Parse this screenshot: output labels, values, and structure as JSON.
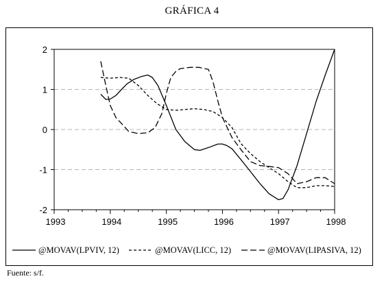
{
  "title": "GRÁFICA 4",
  "source": "Fuente: s/f.",
  "chart_data": {
    "type": "line",
    "xlim": [
      1993.0,
      1998.0
    ],
    "ylim": [
      -2,
      2
    ],
    "x_ticks": [
      "1993",
      "1994",
      "1995",
      "1996",
      "1997",
      "1998"
    ],
    "y_ticks": [
      "2",
      "1",
      "0",
      "-1",
      "-2"
    ],
    "grid": "horizontal dashed at 1, 0, -1",
    "legend_position": "bottom",
    "series": [
      {
        "name": "@MOVAV(LPVIV, 12)",
        "style": "solid",
        "x": [
          1993.83,
          1993.92,
          1994.0,
          1994.1,
          1994.2,
          1994.3,
          1994.42,
          1994.55,
          1994.67,
          1994.75,
          1994.85,
          1995.0,
          1995.17,
          1995.33,
          1995.5,
          1995.6,
          1995.75,
          1995.92,
          1996.0,
          1996.08,
          1996.17,
          1996.33,
          1996.5,
          1996.67,
          1996.83,
          1997.0,
          1997.08,
          1997.17,
          1997.33,
          1997.5,
          1997.67,
          1997.83,
          1998.0
        ],
        "values": [
          0.88,
          0.75,
          0.76,
          0.85,
          1.0,
          1.14,
          1.25,
          1.32,
          1.36,
          1.3,
          1.1,
          0.6,
          0.0,
          -0.3,
          -0.5,
          -0.52,
          -0.45,
          -0.36,
          -0.36,
          -0.4,
          -0.48,
          -0.75,
          -1.05,
          -1.35,
          -1.6,
          -1.75,
          -1.72,
          -1.5,
          -0.9,
          -0.1,
          0.7,
          1.35,
          2.0
        ]
      },
      {
        "name": "@MOVAV(LICC, 12)",
        "style": "dashed",
        "x": [
          1993.83,
          1994.0,
          1994.17,
          1994.33,
          1994.5,
          1994.67,
          1994.83,
          1995.0,
          1995.17,
          1995.33,
          1995.5,
          1995.67,
          1995.83,
          1996.0,
          1996.17,
          1996.33,
          1996.5,
          1996.67,
          1996.83,
          1997.0,
          1997.17,
          1997.33,
          1997.5,
          1997.67,
          1997.83,
          1998.0
        ],
        "values": [
          1.3,
          1.28,
          1.3,
          1.28,
          1.1,
          0.85,
          0.65,
          0.5,
          0.48,
          0.5,
          0.52,
          0.5,
          0.45,
          0.3,
          0.05,
          -0.35,
          -0.6,
          -0.8,
          -0.95,
          -1.1,
          -1.3,
          -1.45,
          -1.45,
          -1.4,
          -1.4,
          -1.42
        ]
      },
      {
        "name": "@MOVAV(LIPASIVA, 12)",
        "style": "long-dash",
        "x": [
          1993.83,
          1993.92,
          1994.0,
          1994.1,
          1994.2,
          1994.33,
          1994.5,
          1994.67,
          1994.8,
          1994.92,
          1995.0,
          1995.08,
          1995.17,
          1995.25,
          1995.42,
          1995.58,
          1995.75,
          1995.83,
          1995.92,
          1996.0,
          1996.17,
          1996.33,
          1996.5,
          1996.67,
          1996.83,
          1997.0,
          1997.17,
          1997.33,
          1997.5,
          1997.67,
          1997.83,
          1998.0
        ],
        "values": [
          1.7,
          1.1,
          0.6,
          0.3,
          0.15,
          -0.05,
          -0.1,
          -0.08,
          0.05,
          0.4,
          0.9,
          1.3,
          1.45,
          1.52,
          1.55,
          1.55,
          1.5,
          1.2,
          0.7,
          0.3,
          -0.2,
          -0.5,
          -0.8,
          -0.9,
          -0.92,
          -0.95,
          -1.1,
          -1.35,
          -1.3,
          -1.2,
          -1.2,
          -1.35
        ]
      }
    ]
  }
}
